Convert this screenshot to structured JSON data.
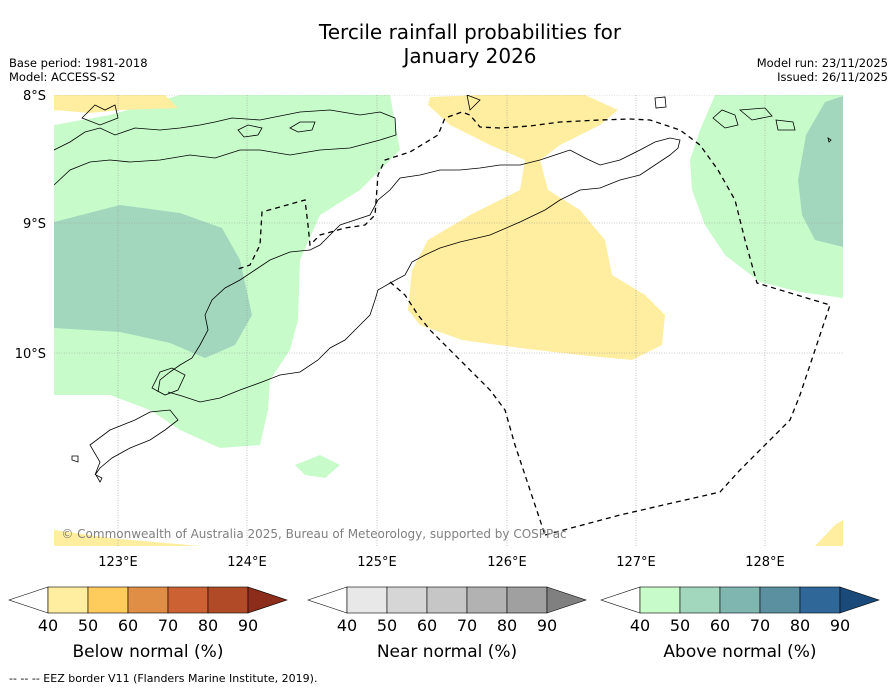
{
  "title": {
    "line1": "Tercile rainfall probabilities for",
    "line2": "January 2026"
  },
  "meta": {
    "base_period": "Base period: 1981-2018",
    "model": "Model: ACCESS-S2",
    "model_run": "Model run: 23/11/2025",
    "issued": "Issued: 26/11/2025"
  },
  "axes": {
    "lat_labels": [
      "8°S",
      "9°S",
      "10°S"
    ],
    "lon_labels": [
      "123°E",
      "124°E",
      "125°E",
      "126°E",
      "127°E",
      "128°E"
    ]
  },
  "copyright": "© Commonwealth of Australia 2025, Bureau of Meteorology, supported by COSPPac",
  "colorbars": [
    {
      "label": "Below normal (%)",
      "ticks": [
        "40",
        "50",
        "60",
        "70",
        "80",
        "90"
      ],
      "colors": [
        "#ffffff",
        "#ffeda0",
        "#fecc5c",
        "#e08e45",
        "#cc6233",
        "#b14a27",
        "#8c2d1c"
      ]
    },
    {
      "label": "Near normal (%)",
      "ticks": [
        "40",
        "50",
        "60",
        "70",
        "80",
        "90"
      ],
      "colors": [
        "#ffffff",
        "#e8e8e8",
        "#d6d6d6",
        "#c6c6c6",
        "#b2b2b2",
        "#a0a0a0",
        "#808080"
      ]
    },
    {
      "label": "Above normal (%)",
      "ticks": [
        "40",
        "50",
        "60",
        "70",
        "80",
        "90"
      ],
      "colors": [
        "#ffffff",
        "#c7fcca",
        "#a2d7be",
        "#7fb7b0",
        "#5a90a0",
        "#2f6799",
        "#1a4a7a"
      ]
    }
  ],
  "footnote": "--  --  -- EEZ border V11 (Flanders Marine Institute, 2019)."
}
